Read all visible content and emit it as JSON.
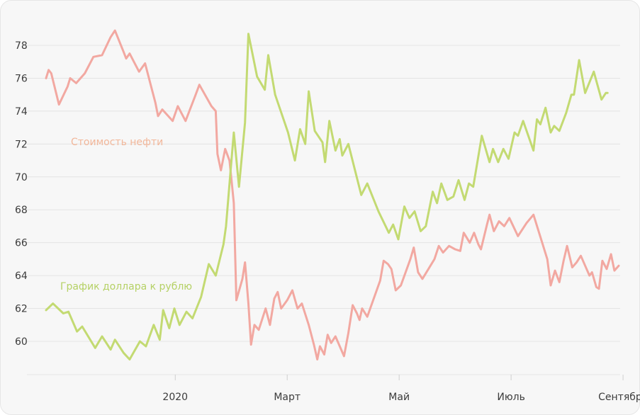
{
  "chart_data": {
    "type": "line",
    "xlabel": "",
    "ylabel": "",
    "ylim": [
      59,
      79
    ],
    "y_ticks": [
      60,
      62,
      64,
      66,
      68,
      70,
      72,
      74,
      76,
      78
    ],
    "x_ticks": [
      {
        "label": "2020",
        "t": 15
      },
      {
        "label": "Март",
        "t": 28
      },
      {
        "label": "Май",
        "t": 41
      },
      {
        "label": "Июль",
        "t": 54
      },
      {
        "label": "Сентябрь",
        "t": 67
      }
    ],
    "grid": true,
    "colors": {
      "oil": "#f2a8a1",
      "usd": "#c3da72",
      "oil_label": "#f2b79a",
      "usd_label": "#b5d165"
    },
    "series": [
      {
        "name": "Стоимость нефти",
        "key": "oil",
        "points": [
          [
            0,
            76.0
          ],
          [
            0.3,
            76.5
          ],
          [
            0.6,
            76.3
          ],
          [
            1.5,
            74.4
          ],
          [
            2.5,
            75.5
          ],
          [
            2.8,
            76.0
          ],
          [
            3.5,
            75.7
          ],
          [
            4.5,
            76.3
          ],
          [
            5.5,
            77.3
          ],
          [
            6.5,
            77.4
          ],
          [
            7.5,
            78.5
          ],
          [
            8.0,
            78.9
          ],
          [
            9.0,
            77.6
          ],
          [
            9.3,
            77.2
          ],
          [
            9.7,
            77.5
          ],
          [
            10.2,
            77.0
          ],
          [
            10.8,
            76.4
          ],
          [
            11.5,
            76.9
          ],
          [
            12.7,
            74.5
          ],
          [
            13.0,
            73.7
          ],
          [
            13.5,
            74.1
          ],
          [
            14.7,
            73.4
          ],
          [
            15.3,
            74.3
          ],
          [
            16.2,
            73.4
          ],
          [
            17.3,
            74.9
          ],
          [
            17.8,
            75.6
          ],
          [
            19.2,
            74.3
          ],
          [
            19.7,
            74.0
          ],
          [
            19.9,
            71.4
          ],
          [
            20.3,
            70.4
          ],
          [
            20.8,
            71.7
          ],
          [
            21.3,
            71.0
          ],
          [
            21.5,
            70.0
          ],
          [
            21.8,
            68.4
          ],
          [
            22.1,
            62.5
          ],
          [
            22.8,
            63.8
          ],
          [
            23.1,
            64.8
          ],
          [
            23.5,
            62.3
          ],
          [
            23.8,
            59.8
          ],
          [
            24.2,
            61.0
          ],
          [
            24.7,
            60.7
          ],
          [
            25.5,
            62.0
          ],
          [
            26.0,
            61.0
          ],
          [
            26.5,
            62.6
          ],
          [
            26.9,
            63.0
          ],
          [
            27.3,
            62.0
          ],
          [
            28.0,
            62.5
          ],
          [
            28.6,
            63.1
          ],
          [
            29.2,
            62.0
          ],
          [
            29.7,
            62.3
          ],
          [
            30.5,
            61.0
          ],
          [
            31.1,
            59.8
          ],
          [
            31.5,
            58.9
          ],
          [
            31.8,
            59.7
          ],
          [
            32.3,
            59.2
          ],
          [
            32.7,
            60.4
          ],
          [
            33.1,
            59.9
          ],
          [
            33.6,
            60.3
          ],
          [
            34.6,
            59.1
          ],
          [
            35.1,
            60.5
          ],
          [
            35.6,
            62.2
          ],
          [
            36.1,
            61.7
          ],
          [
            36.4,
            61.3
          ],
          [
            36.7,
            62.0
          ],
          [
            37.3,
            61.5
          ],
          [
            38.8,
            63.7
          ],
          [
            39.2,
            64.9
          ],
          [
            39.7,
            64.7
          ],
          [
            40.1,
            64.4
          ],
          [
            40.6,
            63.1
          ],
          [
            41.2,
            63.4
          ],
          [
            42.3,
            65.0
          ],
          [
            42.7,
            65.7
          ],
          [
            43.2,
            64.2
          ],
          [
            43.7,
            63.8
          ],
          [
            45.1,
            65.0
          ],
          [
            45.6,
            65.8
          ],
          [
            46.1,
            65.4
          ],
          [
            46.8,
            65.8
          ],
          [
            47.5,
            65.6
          ],
          [
            48.1,
            65.5
          ],
          [
            48.5,
            66.6
          ],
          [
            49.2,
            66.0
          ],
          [
            49.7,
            66.6
          ],
          [
            50.2,
            65.9
          ],
          [
            50.5,
            65.6
          ],
          [
            51.2,
            67.1
          ],
          [
            51.5,
            67.7
          ],
          [
            52.0,
            66.7
          ],
          [
            52.6,
            67.3
          ],
          [
            53.2,
            67.0
          ],
          [
            53.8,
            67.5
          ],
          [
            54.8,
            66.4
          ],
          [
            55.8,
            67.2
          ],
          [
            56.6,
            67.7
          ],
          [
            58.2,
            65.0
          ],
          [
            58.6,
            63.4
          ],
          [
            59.1,
            64.3
          ],
          [
            59.6,
            63.6
          ],
          [
            60.1,
            64.9
          ],
          [
            60.5,
            65.8
          ],
          [
            61.1,
            64.5
          ],
          [
            61.6,
            64.8
          ],
          [
            62.1,
            65.2
          ],
          [
            62.6,
            64.6
          ],
          [
            63.1,
            64.0
          ],
          [
            63.4,
            64.2
          ],
          [
            63.9,
            63.3
          ],
          [
            64.2,
            63.2
          ],
          [
            64.6,
            64.9
          ],
          [
            65.1,
            64.4
          ],
          [
            65.6,
            65.3
          ],
          [
            66.0,
            64.3
          ],
          [
            66.5,
            64.6
          ]
        ]
      },
      {
        "name": "График доллара к рублю",
        "key": "usd",
        "points": [
          [
            0,
            61.9
          ],
          [
            0.8,
            62.3
          ],
          [
            2.0,
            61.7
          ],
          [
            2.6,
            61.8
          ],
          [
            3.6,
            60.6
          ],
          [
            4.2,
            60.9
          ],
          [
            5.7,
            59.6
          ],
          [
            6.5,
            60.3
          ],
          [
            7.5,
            59.5
          ],
          [
            8.0,
            60.1
          ],
          [
            9.0,
            59.3
          ],
          [
            9.7,
            58.9
          ],
          [
            10.9,
            60.0
          ],
          [
            11.6,
            59.7
          ],
          [
            12.5,
            61.0
          ],
          [
            13.2,
            60.1
          ],
          [
            13.6,
            61.9
          ],
          [
            14.3,
            60.8
          ],
          [
            14.9,
            62.0
          ],
          [
            15.5,
            61.0
          ],
          [
            16.3,
            61.8
          ],
          [
            17.0,
            61.4
          ],
          [
            18.0,
            62.7
          ],
          [
            18.9,
            64.7
          ],
          [
            19.7,
            64.0
          ],
          [
            20.6,
            65.9
          ],
          [
            20.9,
            67.0
          ],
          [
            21.4,
            70.2
          ],
          [
            21.8,
            72.7
          ],
          [
            22.4,
            69.4
          ],
          [
            23.1,
            73.3
          ],
          [
            23.5,
            78.7
          ],
          [
            24.5,
            76.1
          ],
          [
            25.4,
            75.3
          ],
          [
            25.8,
            77.4
          ],
          [
            26.6,
            75.0
          ],
          [
            28.1,
            72.7
          ],
          [
            28.9,
            71.0
          ],
          [
            29.5,
            72.9
          ],
          [
            30.1,
            72.0
          ],
          [
            30.5,
            75.2
          ],
          [
            31.2,
            72.8
          ],
          [
            32.1,
            72.1
          ],
          [
            32.4,
            70.9
          ],
          [
            32.9,
            73.4
          ],
          [
            33.6,
            71.6
          ],
          [
            34.1,
            72.3
          ],
          [
            34.4,
            71.3
          ],
          [
            35.1,
            72.0
          ],
          [
            36.6,
            68.9
          ],
          [
            37.3,
            69.6
          ],
          [
            38.6,
            67.9
          ],
          [
            39.8,
            66.6
          ],
          [
            40.3,
            67.1
          ],
          [
            40.9,
            66.2
          ],
          [
            41.6,
            68.2
          ],
          [
            42.2,
            67.5
          ],
          [
            42.8,
            67.9
          ],
          [
            43.5,
            66.7
          ],
          [
            44.1,
            67.0
          ],
          [
            44.9,
            69.1
          ],
          [
            45.4,
            68.4
          ],
          [
            45.9,
            69.6
          ],
          [
            46.6,
            68.6
          ],
          [
            47.3,
            68.8
          ],
          [
            47.9,
            69.8
          ],
          [
            48.6,
            68.6
          ],
          [
            49.1,
            69.6
          ],
          [
            49.6,
            69.4
          ],
          [
            50.6,
            72.5
          ],
          [
            51.5,
            70.9
          ],
          [
            51.9,
            71.7
          ],
          [
            52.5,
            70.9
          ],
          [
            53.1,
            71.7
          ],
          [
            53.7,
            71.1
          ],
          [
            54.4,
            72.7
          ],
          [
            54.8,
            72.5
          ],
          [
            55.4,
            73.4
          ],
          [
            56.6,
            71.6
          ],
          [
            57.0,
            73.5
          ],
          [
            57.4,
            73.2
          ],
          [
            58.0,
            74.2
          ],
          [
            58.6,
            72.7
          ],
          [
            59.0,
            73.1
          ],
          [
            59.6,
            72.8
          ],
          [
            60.4,
            73.9
          ],
          [
            61.0,
            75.0
          ],
          [
            61.3,
            75.0
          ],
          [
            61.9,
            77.1
          ],
          [
            62.6,
            75.1
          ],
          [
            63.6,
            76.4
          ],
          [
            64.5,
            74.7
          ],
          [
            65.0,
            75.1
          ],
          [
            65.2,
            75.1
          ]
        ]
      }
    ],
    "labels": {
      "oil": "Стоимость нефти",
      "usd": "График доллара к рублю"
    }
  }
}
